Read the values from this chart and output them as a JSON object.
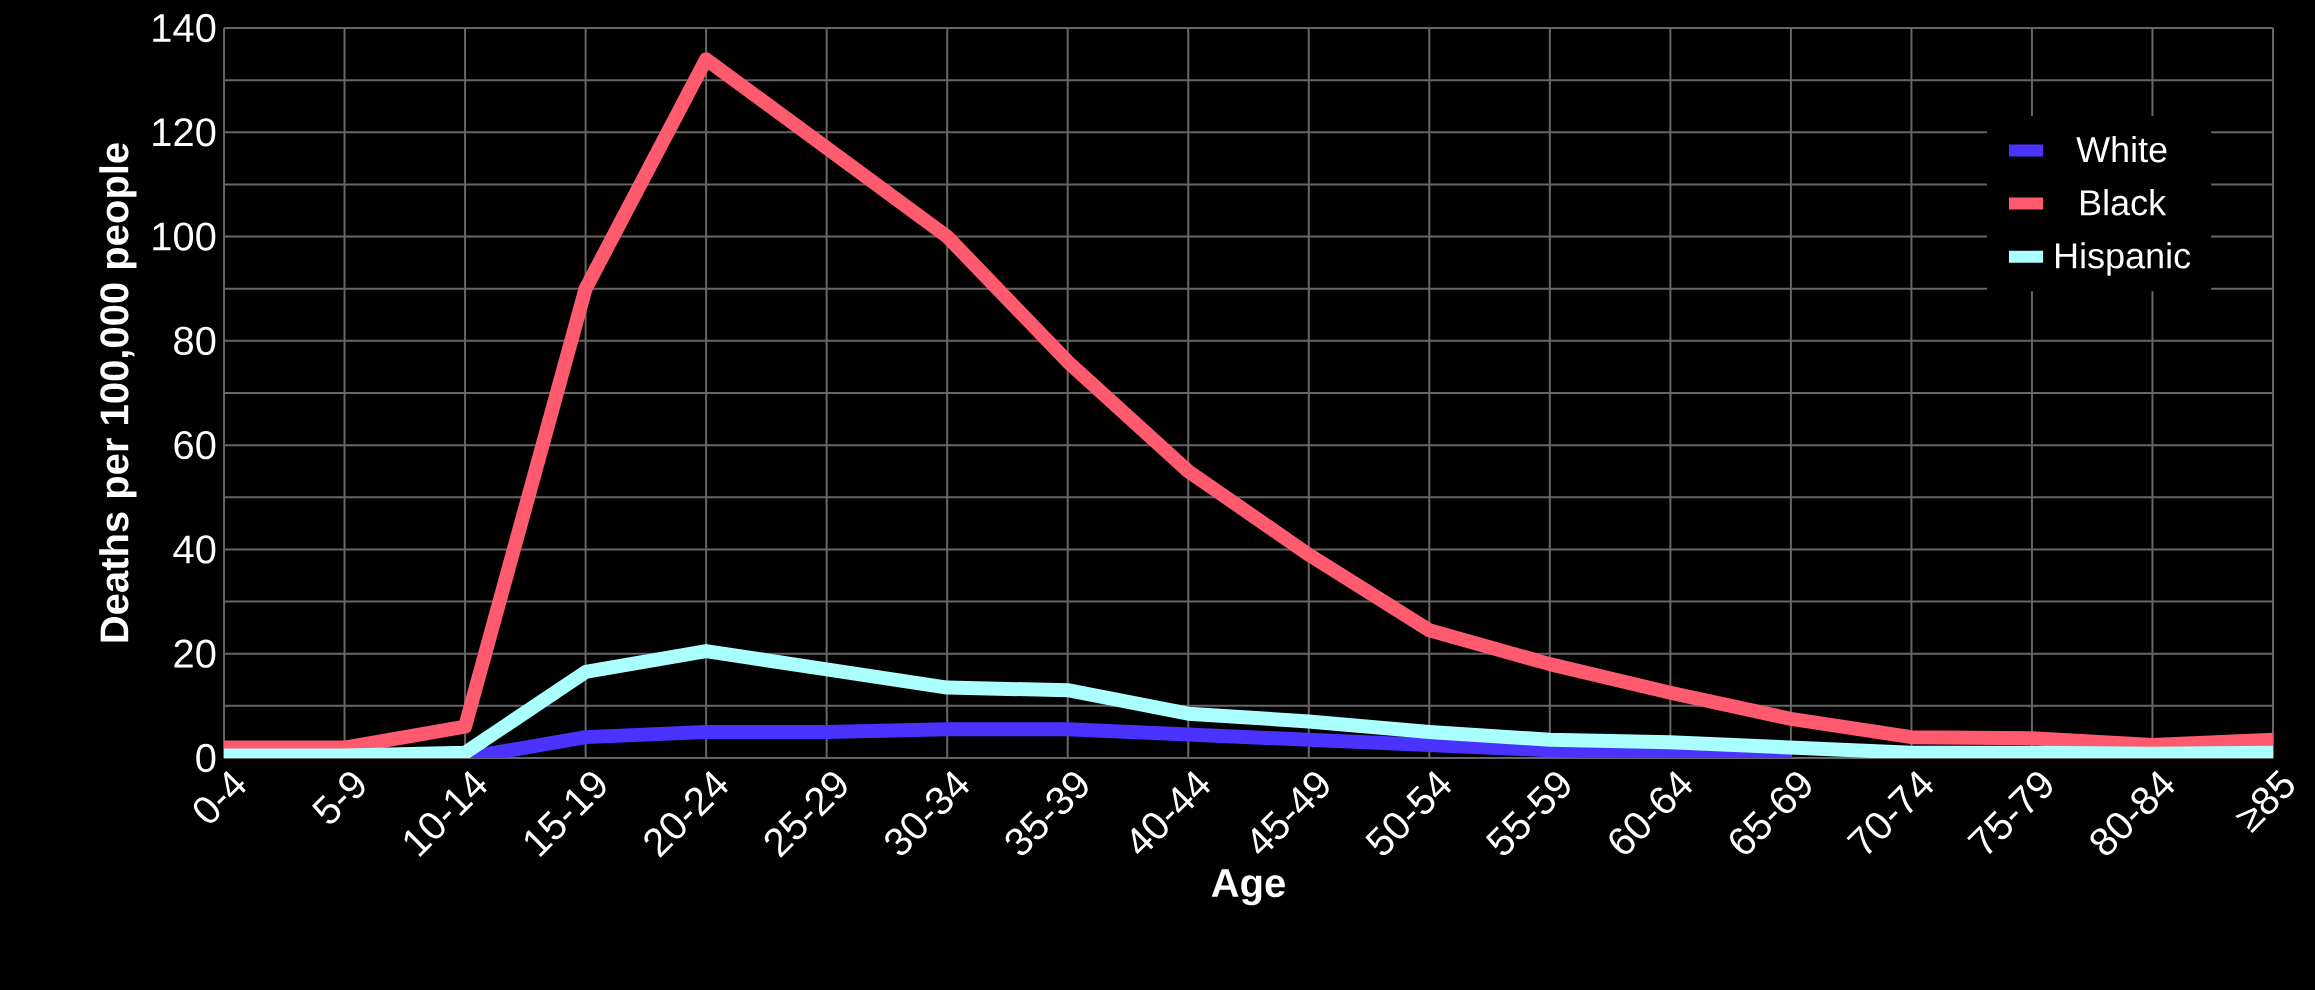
{
  "chart_data": {
    "type": "line",
    "xlabel": "Age",
    "ylabel": "Deaths per 100,000 people",
    "categories": [
      "0-4",
      "5-9",
      "10-14",
      "15-19",
      "20-24",
      "25-29",
      "30-34",
      "35-39",
      "40-44",
      "45-49",
      "50-54",
      "55-59",
      "60-64",
      "65-69",
      "70-74",
      "75-79",
      "80-84",
      "≥85"
    ],
    "series": [
      {
        "name": "White",
        "color": "#4a33ff",
        "values": [
          null,
          null,
          0,
          4,
          5,
          5,
          5.5,
          5.5,
          4.5,
          3.5,
          2.5,
          1.5,
          1,
          0.5,
          null,
          null,
          null,
          null
        ]
      },
      {
        "name": "Black",
        "color": "#ff5a6e",
        "values": [
          2,
          2,
          6,
          90,
          134,
          117,
          100,
          76,
          55,
          39,
          24.5,
          18,
          12.5,
          7.5,
          4,
          3.8,
          2.5,
          3.5
        ]
      },
      {
        "name": "Hispanic",
        "color": "#aaffff",
        "values": [
          0.5,
          0.5,
          1,
          16.5,
          20.5,
          17,
          13.5,
          13,
          8.5,
          7,
          5,
          3.5,
          3,
          2,
          1,
          1,
          0.8,
          1
        ]
      }
    ],
    "ylim": [
      0,
      140
    ],
    "yticks": [
      0,
      20,
      40,
      60,
      80,
      100,
      120,
      140
    ],
    "grid": true,
    "legend": "top right"
  }
}
